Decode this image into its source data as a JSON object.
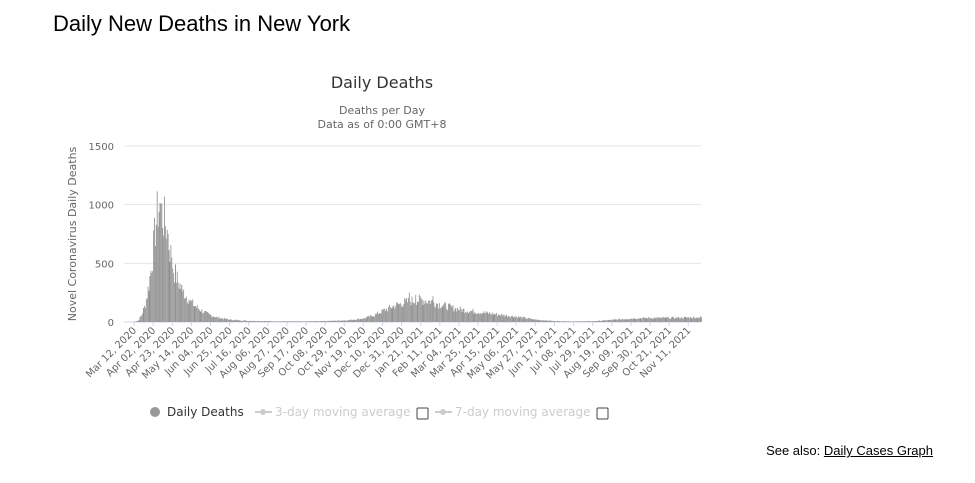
{
  "page": {
    "heading": "Daily New Deaths in New York",
    "see_also_prefix": "See also: ",
    "see_also_link": "Daily Cases Graph"
  },
  "chart_data": {
    "type": "bar",
    "title": "Daily Deaths",
    "subtitle_lines": [
      "Deaths per Day",
      "Data as of 0:00 GMT+8"
    ],
    "ylabel": "Novel Coronavirus Daily Deaths",
    "xlabel": "",
    "ylim": [
      0,
      1500
    ],
    "yticks": [
      0,
      500,
      1000,
      1500
    ],
    "grid": true,
    "legend_position": "bottom",
    "x_start": "2020-03-01",
    "x_end": "2021-11-25",
    "xtick_labels": [
      "Mar 12, 2020",
      "Apr 02, 2020",
      "Apr 23, 2020",
      "May 14, 2020",
      "Jun 04, 2020",
      "Jun 25, 2020",
      "Jul 16, 2020",
      "Aug 06, 2020",
      "Aug 27, 2020",
      "Sep 17, 2020",
      "Oct 08, 2020",
      "Oct 29, 2020",
      "Nov 19, 2020",
      "Dec 10, 2020",
      "Dec 31, 2020",
      "Jan 21, 2021",
      "Feb 11, 2021",
      "Mar 04, 2021",
      "Mar 25, 2021",
      "Apr 15, 2021",
      "May 06, 2021",
      "May 27, 2021",
      "Jun 17, 2021",
      "Jul 08, 2021",
      "Jul 29, 2021",
      "Aug 19, 2021",
      "Sep 09, 2021",
      "Sep 30, 2021",
      "Oct 21, 2021",
      "Nov 11, 2021"
    ],
    "series": [
      {
        "name": "Daily Deaths",
        "color": "#999999",
        "keypoints": [
          [
            "2020-03-10",
            0
          ],
          [
            "2020-03-16",
            10
          ],
          [
            "2020-03-20",
            60
          ],
          [
            "2020-03-24",
            150
          ],
          [
            "2020-03-28",
            320
          ],
          [
            "2020-04-01",
            560
          ],
          [
            "2020-04-04",
            800
          ],
          [
            "2020-04-07",
            960
          ],
          [
            "2020-04-09",
            990
          ],
          [
            "2020-04-12",
            900
          ],
          [
            "2020-04-16",
            820
          ],
          [
            "2020-04-20",
            620
          ],
          [
            "2020-04-24",
            450
          ],
          [
            "2020-04-28",
            360
          ],
          [
            "2020-05-03",
            280
          ],
          [
            "2020-05-10",
            200
          ],
          [
            "2020-05-17",
            140
          ],
          [
            "2020-05-24",
            100
          ],
          [
            "2020-05-31",
            70
          ],
          [
            "2020-06-10",
            40
          ],
          [
            "2020-06-25",
            20
          ],
          [
            "2020-07-15",
            10
          ],
          [
            "2020-08-15",
            6
          ],
          [
            "2020-09-15",
            5
          ],
          [
            "2020-10-15",
            10
          ],
          [
            "2020-11-01",
            15
          ],
          [
            "2020-11-19",
            30
          ],
          [
            "2020-12-01",
            60
          ],
          [
            "2020-12-10",
            95
          ],
          [
            "2020-12-20",
            130
          ],
          [
            "2020-12-31",
            160
          ],
          [
            "2021-01-10",
            180
          ],
          [
            "2021-01-21",
            190
          ],
          [
            "2021-02-01",
            175
          ],
          [
            "2021-02-11",
            150
          ],
          [
            "2021-02-25",
            120
          ],
          [
            "2021-03-10",
            100
          ],
          [
            "2021-03-25",
            85
          ],
          [
            "2021-04-15",
            65
          ],
          [
            "2021-05-06",
            45
          ],
          [
            "2021-05-27",
            20
          ],
          [
            "2021-06-17",
            8
          ],
          [
            "2021-07-08",
            5
          ],
          [
            "2021-07-29",
            7
          ],
          [
            "2021-08-19",
            18
          ],
          [
            "2021-09-09",
            30
          ],
          [
            "2021-09-30",
            35
          ],
          [
            "2021-10-21",
            35
          ],
          [
            "2021-11-11",
            38
          ],
          [
            "2021-11-25",
            40
          ]
        ],
        "spikes": [
          [
            "2020-04-10",
            1010
          ],
          [
            "2020-04-18",
            750
          ],
          [
            "2020-04-22",
            550
          ],
          [
            "2020-05-04",
            260
          ],
          [
            "2020-05-11",
            190
          ],
          [
            "2021-01-08",
            250
          ],
          [
            "2021-01-15",
            230
          ],
          [
            "2021-02-03",
            220
          ]
        ]
      },
      {
        "name": "3-day moving average",
        "color": "#cccccc",
        "visible": false
      },
      {
        "name": "7-day moving average",
        "color": "#cccccc",
        "visible": false
      }
    ]
  }
}
